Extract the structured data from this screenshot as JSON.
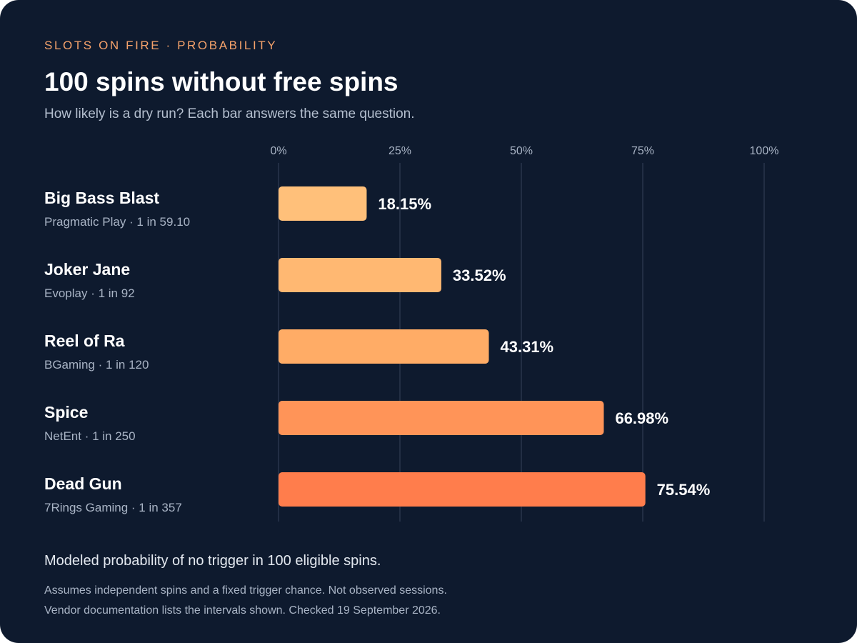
{
  "header": {
    "eyebrow": "SLOTS ON FIRE · PROBABILITY",
    "title": "100 spins without free spins",
    "subtitle": "How likely is a dry run? Each bar answers the same question."
  },
  "chart_data": {
    "type": "bar",
    "orientation": "horizontal",
    "xlim": [
      0,
      100
    ],
    "ticks": [
      "0%",
      "25%",
      "50%",
      "75%",
      "100%"
    ],
    "tick_values": [
      0,
      25,
      50,
      75,
      100
    ],
    "grid": true,
    "categories": [
      "Big Bass Blast",
      "Joker Jane",
      "Reel of Ra",
      "Spice",
      "Dead Gun"
    ],
    "subtitles": [
      "Pragmatic Play · 1 in 59.10",
      "Evoplay · 1 in 92",
      "BGaming · 1 in 120",
      "NetEnt · 1 in 250",
      "7Rings Gaming · 1 in 357"
    ],
    "values": [
      18.15,
      33.52,
      43.31,
      66.98,
      75.54
    ],
    "value_labels": [
      "18.15%",
      "33.52%",
      "43.31%",
      "66.98%",
      "75.54%"
    ],
    "colors": [
      "#ffc07a",
      "#ffb872",
      "#ffac66",
      "#ff9458",
      "#ff7d4c"
    ]
  },
  "footer": {
    "note": "Modeled probability of no trigger in 100 eligible spins.",
    "fine_1": "Assumes independent spins and a fixed trigger chance. Not observed sessions.",
    "fine_2": "Vendor documentation lists the intervals shown. Checked 19 September 2026."
  }
}
